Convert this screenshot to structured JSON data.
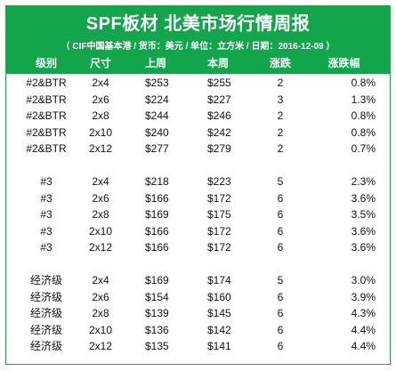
{
  "title": "SPF板材 北美市场行情周报",
  "subtitle": "（ CIF中国基本港 / 货币：美元 / 单位：立方米 / 日期：2016-12-09 ）",
  "headers": [
    "级别",
    "尺寸",
    "上周",
    "本周",
    "涨跌",
    "涨跌幅"
  ],
  "groups": [
    {
      "rows": [
        [
          "#2&BTR",
          "2x4",
          "$253",
          "$255",
          "2",
          "0.8%"
        ],
        [
          "#2&BTR",
          "2x6",
          "$224",
          "$227",
          "3",
          "1.3%"
        ],
        [
          "#2&BTR",
          "2x8",
          "$244",
          "$246",
          "2",
          "0.8%"
        ],
        [
          "#2&BTR",
          "2x10",
          "$240",
          "$242",
          "2",
          "0.8%"
        ],
        [
          "#2&BTR",
          "2x12",
          "$277",
          "$279",
          "2",
          "0.7%"
        ]
      ]
    },
    {
      "rows": [
        [
          "#3",
          "2x4",
          "$218",
          "$223",
          "5",
          "2.3%"
        ],
        [
          "#3",
          "2x6",
          "$166",
          "$172",
          "6",
          "3.6%"
        ],
        [
          "#3",
          "2x8",
          "$169",
          "$175",
          "6",
          "3.5%"
        ],
        [
          "#3",
          "2x10",
          "$166",
          "$172",
          "6",
          "3.6%"
        ],
        [
          "#3",
          "2x12",
          "$166",
          "$172",
          "6",
          "3.6%"
        ]
      ]
    },
    {
      "rows": [
        [
          "经济级",
          "2x4",
          "$169",
          "$174",
          "5",
          "3.0%"
        ],
        [
          "经济级",
          "2x6",
          "$154",
          "$160",
          "6",
          "3.9%"
        ],
        [
          "经济级",
          "2x8",
          "$139",
          "$145",
          "6",
          "4.3%"
        ],
        [
          "经济级",
          "2x10",
          "$136",
          "$142",
          "6",
          "4.4%"
        ],
        [
          "经济级",
          "2x12",
          "$135",
          "$141",
          "6",
          "4.4%"
        ]
      ]
    }
  ],
  "colors": {
    "banner": "#13a54b",
    "border": "#2f9c4c",
    "text": "#111111"
  }
}
